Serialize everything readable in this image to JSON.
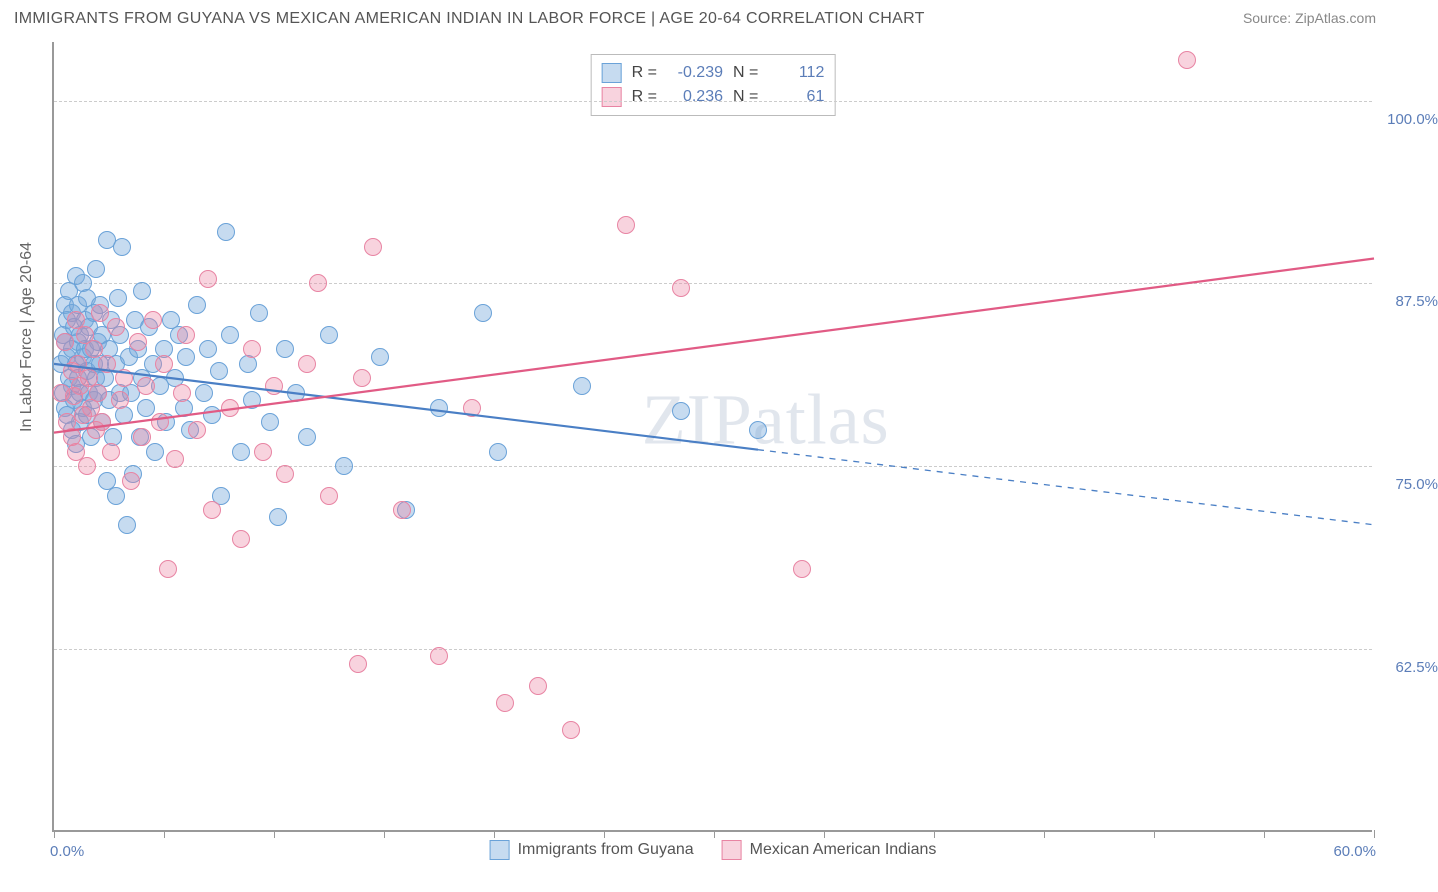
{
  "header": {
    "title": "IMMIGRANTS FROM GUYANA VS MEXICAN AMERICAN INDIAN IN LABOR FORCE | AGE 20-64 CORRELATION CHART",
    "source": "Source: ZipAtlas.com"
  },
  "watermark": "ZIPatlas",
  "chart": {
    "type": "scatter",
    "yaxis": {
      "title": "In Labor Force | Age 20-64",
      "min": 50.0,
      "max": 104.0,
      "gridlines": [
        62.5,
        75.0,
        87.5,
        100.0
      ],
      "tick_labels": [
        "62.5%",
        "75.0%",
        "87.5%",
        "100.0%"
      ],
      "label_color": "#5b7db8",
      "label_fontsize": 15
    },
    "xaxis": {
      "min": 0.0,
      "max": 60.0,
      "ticks": [
        0,
        5,
        10,
        15,
        20,
        25,
        30,
        35,
        40,
        45,
        50,
        55,
        60
      ],
      "end_labels": {
        "left": "0.0%",
        "right": "60.0%"
      },
      "label_color": "#5b7db8",
      "label_fontsize": 15
    },
    "background_color": "#ffffff",
    "grid_color": "#cccccc",
    "grid_dash": "4,4",
    "axis_color": "#999999",
    "point_radius": 9,
    "series": [
      {
        "id": "s1",
        "name": "Immigrants from Guyana",
        "fill": "rgba(120,170,220,0.42)",
        "stroke": "#6aa2d8",
        "R": "-0.239",
        "N": "112",
        "trend": {
          "y_at_x0": 82.0,
          "y_at_x60": 71.0,
          "solid_until_x": 32.0,
          "color": "#4a7fc5",
          "width": 2.2
        },
        "points": [
          [
            0.3,
            82
          ],
          [
            0.4,
            84
          ],
          [
            0.4,
            80
          ],
          [
            0.5,
            83.5
          ],
          [
            0.5,
            79
          ],
          [
            0.5,
            86
          ],
          [
            0.6,
            82.5
          ],
          [
            0.6,
            78.5
          ],
          [
            0.6,
            85
          ],
          [
            0.7,
            87
          ],
          [
            0.7,
            81
          ],
          [
            0.8,
            80.5
          ],
          [
            0.8,
            83
          ],
          [
            0.8,
            77.5
          ],
          [
            0.8,
            85.5
          ],
          [
            0.9,
            84.5
          ],
          [
            0.9,
            79.5
          ],
          [
            1.0,
            82
          ],
          [
            1.0,
            88
          ],
          [
            1.0,
            76.5
          ],
          [
            1.1,
            81
          ],
          [
            1.1,
            86
          ],
          [
            1.1,
            83.5
          ],
          [
            1.2,
            80
          ],
          [
            1.2,
            84
          ],
          [
            1.2,
            78
          ],
          [
            1.3,
            87.5
          ],
          [
            1.3,
            82.5
          ],
          [
            1.3,
            79
          ],
          [
            1.4,
            85
          ],
          [
            1.4,
            83
          ],
          [
            1.5,
            81.5
          ],
          [
            1.5,
            78.5
          ],
          [
            1.5,
            86.5
          ],
          [
            1.6,
            84.5
          ],
          [
            1.6,
            80
          ],
          [
            1.7,
            83
          ],
          [
            1.7,
            77
          ],
          [
            1.8,
            82
          ],
          [
            1.8,
            85.5
          ],
          [
            1.8,
            79.5
          ],
          [
            1.9,
            81
          ],
          [
            1.9,
            88.5
          ],
          [
            2.0,
            83.5
          ],
          [
            2.0,
            80
          ],
          [
            2.1,
            82
          ],
          [
            2.1,
            86
          ],
          [
            2.2,
            78
          ],
          [
            2.2,
            84
          ],
          [
            2.3,
            81
          ],
          [
            2.4,
            90.5
          ],
          [
            2.4,
            74
          ],
          [
            2.5,
            83
          ],
          [
            2.5,
            79.5
          ],
          [
            2.6,
            85
          ],
          [
            2.7,
            77
          ],
          [
            2.8,
            82
          ],
          [
            2.8,
            73
          ],
          [
            2.9,
            86.5
          ],
          [
            3.0,
            80
          ],
          [
            3.0,
            84
          ],
          [
            3.1,
            90
          ],
          [
            3.2,
            78.5
          ],
          [
            3.3,
            71
          ],
          [
            3.4,
            82.5
          ],
          [
            3.5,
            80
          ],
          [
            3.6,
            74.5
          ],
          [
            3.7,
            85
          ],
          [
            3.8,
            83
          ],
          [
            3.9,
            77
          ],
          [
            4.0,
            81
          ],
          [
            4.0,
            87
          ],
          [
            4.2,
            79
          ],
          [
            4.3,
            84.5
          ],
          [
            4.5,
            82
          ],
          [
            4.6,
            76
          ],
          [
            4.8,
            80.5
          ],
          [
            5.0,
            83
          ],
          [
            5.1,
            78
          ],
          [
            5.3,
            85
          ],
          [
            5.5,
            81
          ],
          [
            5.7,
            84
          ],
          [
            5.9,
            79
          ],
          [
            6.0,
            82.5
          ],
          [
            6.2,
            77.5
          ],
          [
            6.5,
            86
          ],
          [
            6.8,
            80
          ],
          [
            7.0,
            83
          ],
          [
            7.2,
            78.5
          ],
          [
            7.5,
            81.5
          ],
          [
            7.6,
            73
          ],
          [
            7.8,
            91
          ],
          [
            8.0,
            84
          ],
          [
            8.5,
            76
          ],
          [
            8.8,
            82
          ],
          [
            9.0,
            79.5
          ],
          [
            9.3,
            85.5
          ],
          [
            9.8,
            78
          ],
          [
            10.2,
            71.5
          ],
          [
            10.5,
            83
          ],
          [
            11.0,
            80
          ],
          [
            11.5,
            77
          ],
          [
            12.5,
            84
          ],
          [
            13.2,
            75
          ],
          [
            14.8,
            82.5
          ],
          [
            16.0,
            72
          ],
          [
            17.5,
            79
          ],
          [
            19.5,
            85.5
          ],
          [
            20.2,
            76
          ],
          [
            24.0,
            80.5
          ],
          [
            28.5,
            78.8
          ],
          [
            32.0,
            77.5
          ]
        ]
      },
      {
        "id": "s2",
        "name": "Mexican American Indians",
        "fill": "rgba(235,130,160,0.35)",
        "stroke": "#e884a3",
        "R": "0.236",
        "N": "61",
        "trend": {
          "y_at_x0": 77.3,
          "y_at_x60": 89.2,
          "solid_until_x": 60.0,
          "color": "#e15b85",
          "width": 2.2
        },
        "points": [
          [
            0.3,
            80
          ],
          [
            0.5,
            83.5
          ],
          [
            0.6,
            78
          ],
          [
            0.8,
            81.5
          ],
          [
            0.8,
            77
          ],
          [
            0.9,
            79.8
          ],
          [
            1.0,
            85
          ],
          [
            1.0,
            76
          ],
          [
            1.1,
            82
          ],
          [
            1.2,
            80.5
          ],
          [
            1.3,
            78.5
          ],
          [
            1.4,
            84
          ],
          [
            1.5,
            75
          ],
          [
            1.6,
            81
          ],
          [
            1.7,
            79
          ],
          [
            1.8,
            83
          ],
          [
            1.9,
            77.5
          ],
          [
            2.0,
            80
          ],
          [
            2.1,
            85.5
          ],
          [
            2.2,
            78
          ],
          [
            2.4,
            82
          ],
          [
            2.6,
            76
          ],
          [
            2.8,
            84.5
          ],
          [
            3.0,
            79.5
          ],
          [
            3.2,
            81
          ],
          [
            3.5,
            74
          ],
          [
            3.8,
            83.5
          ],
          [
            4.0,
            77
          ],
          [
            4.2,
            80.5
          ],
          [
            4.5,
            85
          ],
          [
            4.8,
            78
          ],
          [
            5.0,
            82
          ],
          [
            5.2,
            68
          ],
          [
            5.5,
            75.5
          ],
          [
            5.8,
            80
          ],
          [
            6.0,
            84
          ],
          [
            6.5,
            77.5
          ],
          [
            7.0,
            87.8
          ],
          [
            7.2,
            72
          ],
          [
            8.0,
            79
          ],
          [
            8.5,
            70
          ],
          [
            9.0,
            83
          ],
          [
            9.5,
            76
          ],
          [
            10.0,
            80.5
          ],
          [
            10.5,
            74.5
          ],
          [
            11.5,
            82
          ],
          [
            12.0,
            87.5
          ],
          [
            12.5,
            73
          ],
          [
            13.8,
            61.5
          ],
          [
            14.0,
            81
          ],
          [
            14.5,
            90
          ],
          [
            15.8,
            72
          ],
          [
            17.5,
            62
          ],
          [
            19.0,
            79
          ],
          [
            20.5,
            58.8
          ],
          [
            22.0,
            60
          ],
          [
            23.5,
            57
          ],
          [
            26.0,
            91.5
          ],
          [
            28.5,
            87.2
          ],
          [
            34.0,
            68
          ],
          [
            51.5,
            102.8
          ]
        ]
      }
    ],
    "legend_bottom": [
      {
        "swatch": "sq1",
        "label": "Immigrants from Guyana"
      },
      {
        "swatch": "sq2",
        "label": "Mexican American Indians"
      }
    ],
    "legend_top_header": {
      "r_label": "R =",
      "n_label": "N ="
    }
  }
}
